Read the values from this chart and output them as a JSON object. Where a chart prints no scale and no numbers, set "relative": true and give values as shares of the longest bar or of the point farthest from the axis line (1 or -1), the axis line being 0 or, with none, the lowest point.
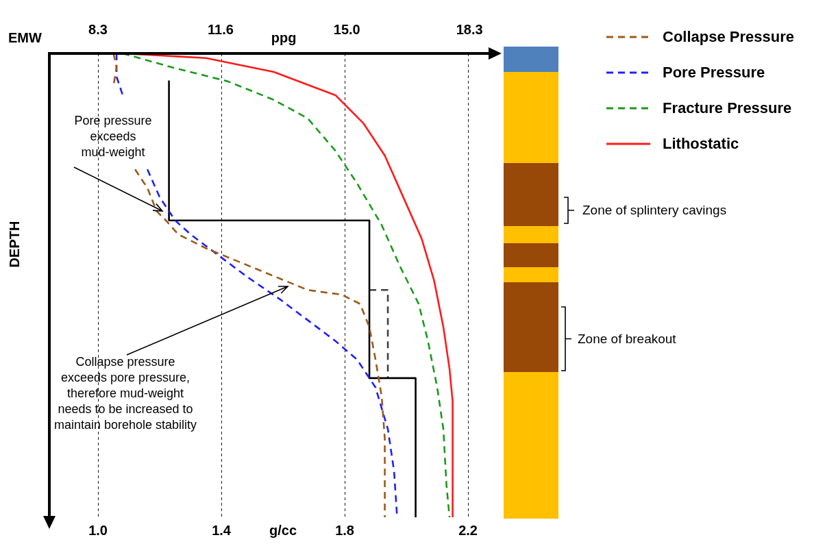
{
  "chart_data": {
    "type": "line",
    "relative": true,
    "xlabel": "g/cc",
    "x2label": "ppg",
    "ylabel": "DEPTH",
    "xlim": [
      0.842,
      2.271
    ],
    "xticks": [
      {
        "value": 1,
        "label": "1.0"
      },
      1.4,
      1.8,
      2.2
    ],
    "x2lim": [
      6.99,
      18.85
    ],
    "x2ticks": [
      8.3,
      11.6,
      {
        "value": 15,
        "label": "15.0"
      },
      18.3
    ],
    "grid": "x",
    "legend": "right",
    "marker": "none",
    "series": [
      {
        "name": "Collapse Pressure",
        "color": "#9c5a1c",
        "line_style": "dashed",
        "x": [
          1.05,
          1.06,
          1.05,
          null,
          1.12,
          1.16,
          1.19,
          1.22,
          1.26,
          1.35,
          1.46,
          1.57,
          1.68,
          1.79,
          1.85,
          1.88,
          1.9,
          1.92,
          1.93,
          1.93
        ],
        "values": [
          0,
          -0.03,
          -0.07,
          null,
          -0.25,
          -0.29,
          -0.34,
          -0.36,
          -0.39,
          -0.42,
          -0.45,
          -0.48,
          -0.51,
          -0.52,
          -0.54,
          -0.59,
          -0.66,
          -0.74,
          -0.83,
          -1
        ]
      },
      {
        "name": "Pore Pressure",
        "color": "#1f1fff",
        "line_style": "dashed",
        "x": [
          1.06,
          1.06,
          1.08,
          null,
          1.16,
          1.2,
          1.25,
          1.3,
          1.38,
          1.48,
          1.59,
          1.69,
          1.77,
          1.84,
          1.9,
          1.94,
          1.96,
          1.97
        ],
        "values": [
          0,
          -0.05,
          -0.09,
          null,
          -0.25,
          -0.31,
          -0.36,
          -0.39,
          -0.43,
          -0.48,
          -0.53,
          -0.58,
          -0.62,
          -0.66,
          -0.72,
          -0.81,
          -0.9,
          -1
        ]
      },
      {
        "name": "Fracture Pressure",
        "color": "#1a9a1a",
        "line_style": "dashed",
        "x": [
          1.08,
          1.24,
          1.42,
          1.57,
          1.68,
          1.77,
          1.84,
          1.92,
          1.98,
          2.04,
          2.07,
          2.1,
          2.12,
          2.13,
          2.14
        ],
        "values": [
          0,
          -0.03,
          -0.06,
          -0.1,
          -0.14,
          -0.21,
          -0.28,
          -0.37,
          -0.46,
          -0.54,
          -0.62,
          -0.72,
          -0.81,
          -0.93,
          -1
        ]
      },
      {
        "name": "Lithostatic",
        "color": "#ff1a1a",
        "line_style": "solid",
        "x": [
          1.08,
          1.35,
          1.57,
          1.77,
          1.86,
          1.93,
          1.99,
          2.05,
          2.09,
          2.12,
          2.14,
          2.15,
          2.15
        ],
        "values": [
          0,
          -0.01,
          -0.04,
          -0.09,
          -0.15,
          -0.22,
          -0.31,
          -0.4,
          -0.49,
          -0.59,
          -0.68,
          -0.75,
          -1
        ]
      },
      {
        "color": "#000000",
        "line_style": "solid",
        "x": [
          1.23,
          1.23,
          1.88,
          1.88,
          2.03,
          2.03
        ],
        "values": [
          -0.06,
          -0.36,
          -0.36,
          -0.7,
          -0.7,
          -1
        ]
      },
      {
        "color": "#404040",
        "line_style": "dashed",
        "x": [
          1.88,
          1.94,
          1.94
        ],
        "values": [
          -0.51,
          -0.51,
          -0.7
        ]
      }
    ],
    "annotations": [
      "EMW",
      "Pore pressure exceeds mud-weight",
      "Collapse pressure exceeds pore pressure, therefore mud-weight needs to be increased to maintain borehole stability",
      "Zone of splintery cavings",
      "Zone of breakout"
    ]
  }
}
